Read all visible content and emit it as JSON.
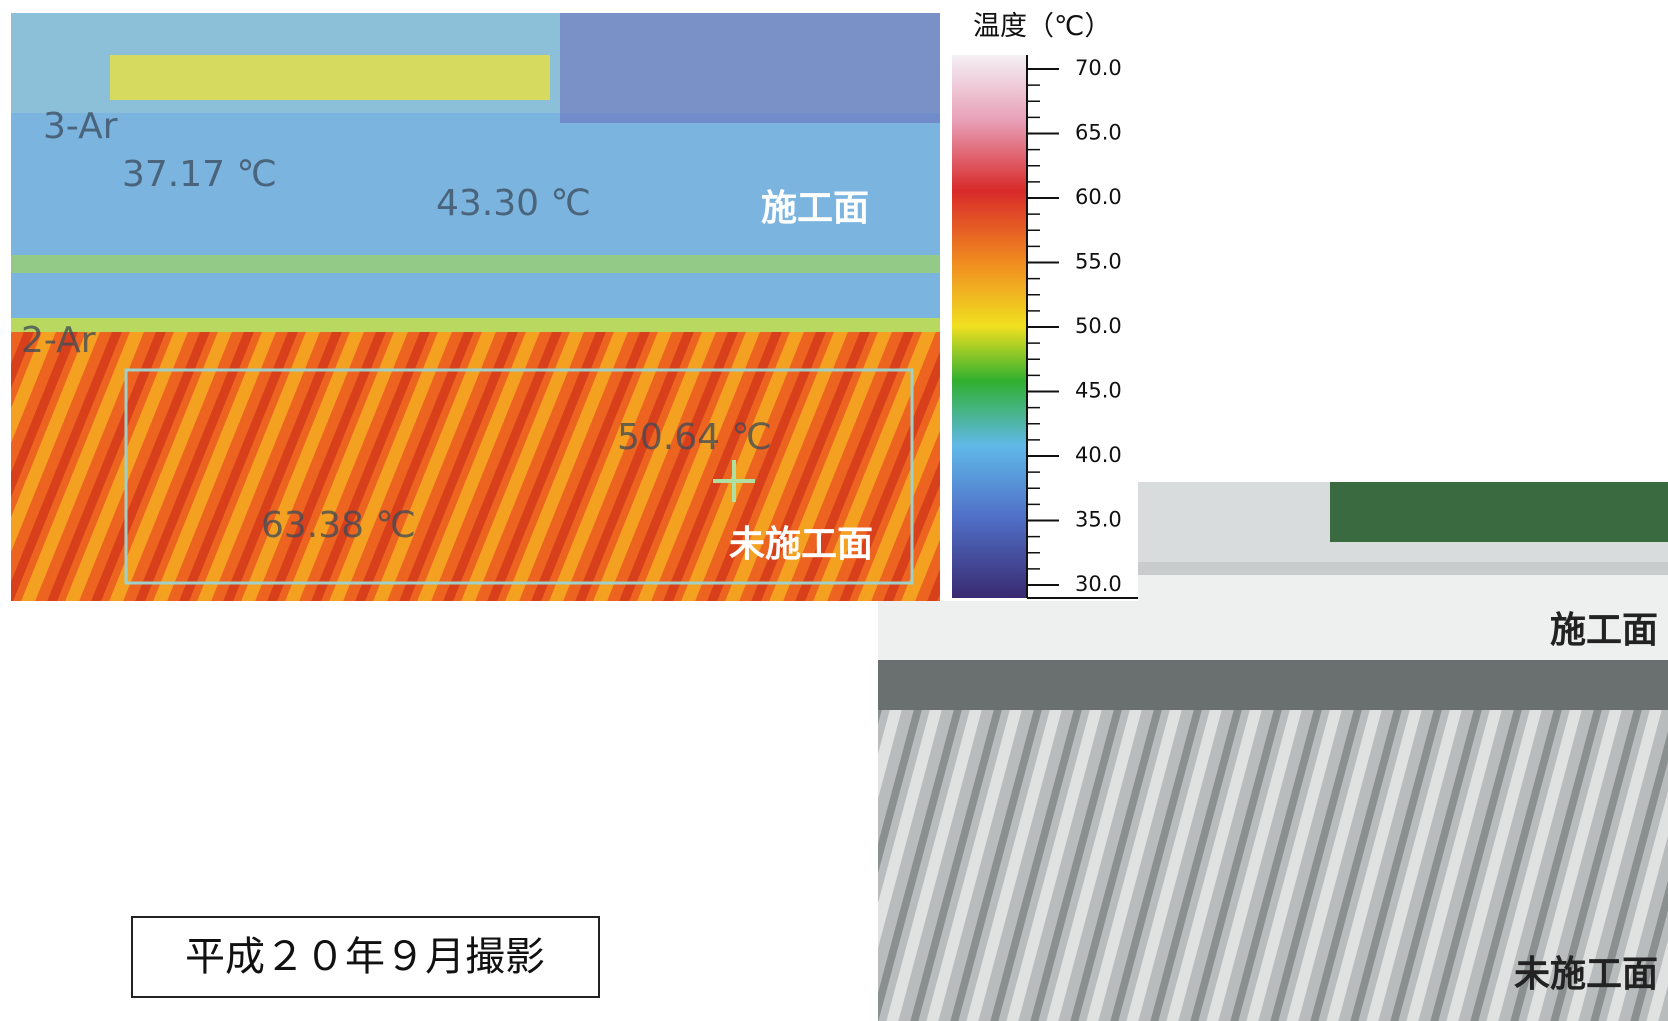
{
  "thermal": {
    "labels": [
      "3-Ar",
      "2-Ar"
    ],
    "readings": [
      "37.17 ℃",
      "43.30 ℃",
      "50.64 ℃",
      "63.38 ℃"
    ],
    "treated": "施工面",
    "untreated": "未施工面"
  },
  "scale": {
    "title": "温度（℃）",
    "ticks": [
      "70.0",
      "65.0",
      "60.0",
      "55.0",
      "50.0",
      "45.0",
      "40.0",
      "35.0",
      "30.0"
    ]
  },
  "photo": {
    "treated": "施工面",
    "untreated": "未施工面"
  },
  "caption": "平成２０年９月撮影"
}
